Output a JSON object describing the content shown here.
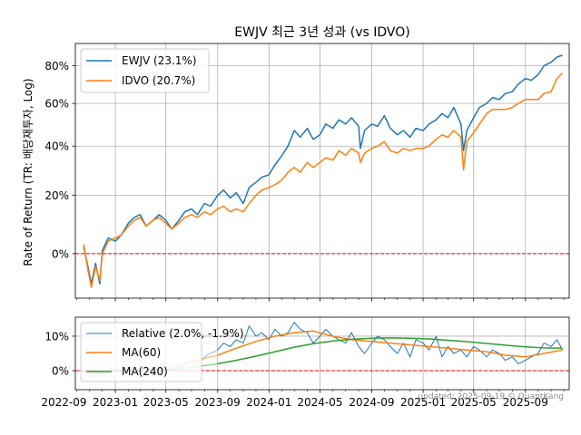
{
  "colors": {
    "ewjv": "#1f77b4",
    "idvo": "#ff7f0e",
    "ma240": "#2ca02c",
    "zero_line": "#ff0000",
    "grid": "#b0b0b0"
  },
  "chart_data": [
    {
      "type": "line",
      "title": "EWJV 최근 3년 성과 (vs IDVO)",
      "ylabel": "Rate of Return (TR: 배당재투자, Log)",
      "yscale": "log(1+r)",
      "ylim": [
        -0.13,
        0.93
      ],
      "yticks": [
        0,
        0.2,
        0.4,
        0.6,
        0.8
      ],
      "ytick_labels": [
        "0%",
        "20%",
        "40%",
        "60%",
        "80%"
      ],
      "xlim": [
        "2022-09-28",
        "2025-12-14"
      ],
      "x_tick_labels": [
        "2022-09",
        "2023-01",
        "2023-05",
        "2023-09",
        "2024-01",
        "2024-05",
        "2024-09",
        "2025-01",
        "2025-05",
        "2025-09"
      ],
      "legend_position": "upper left",
      "zero_line": 0,
      "series": [
        {
          "name": "EWJV (23.1%)",
          "dates": [
            "2022-10-18",
            "2022-10-28",
            "2022-11-05",
            "2022-11-15",
            "2022-11-25",
            "2022-12-01",
            "2022-12-15",
            "2023-01-01",
            "2023-01-15",
            "2023-02-01",
            "2023-02-15",
            "2023-03-01",
            "2023-03-15",
            "2023-04-01",
            "2023-04-15",
            "2023-05-01",
            "2023-05-15",
            "2023-06-01",
            "2023-06-15",
            "2023-07-01",
            "2023-07-15",
            "2023-08-01",
            "2023-08-15",
            "2023-09-01",
            "2023-09-15",
            "2023-10-01",
            "2023-10-15",
            "2023-11-01",
            "2023-11-15",
            "2023-12-01",
            "2023-12-15",
            "2024-01-01",
            "2024-01-15",
            "2024-02-01",
            "2024-02-15",
            "2024-03-01",
            "2024-03-15",
            "2024-04-01",
            "2024-04-15",
            "2024-05-01",
            "2024-05-15",
            "2024-06-01",
            "2024-06-15",
            "2024-07-01",
            "2024-07-15",
            "2024-08-01",
            "2024-08-05",
            "2024-08-15",
            "2024-09-01",
            "2024-09-15",
            "2024-10-01",
            "2024-10-15",
            "2024-11-01",
            "2024-11-15",
            "2024-12-01",
            "2024-12-15",
            "2025-01-01",
            "2025-01-15",
            "2025-02-01",
            "2025-02-15",
            "2025-03-01",
            "2025-03-15",
            "2025-04-01",
            "2025-04-07",
            "2025-04-15",
            "2025-05-01",
            "2025-05-15",
            "2025-06-01",
            "2025-06-15",
            "2025-07-01",
            "2025-07-15",
            "2025-08-01",
            "2025-08-15",
            "2025-09-01",
            "2025-09-15",
            "2025-10-01",
            "2025-10-15",
            "2025-11-01",
            "2025-11-15",
            "2025-11-28"
          ],
          "values": [
            0.02,
            -0.04,
            -0.09,
            -0.03,
            -0.09,
            0.01,
            0.05,
            0.04,
            0.06,
            0.1,
            0.12,
            0.13,
            0.09,
            0.11,
            0.13,
            0.11,
            0.08,
            0.11,
            0.14,
            0.15,
            0.13,
            0.17,
            0.16,
            0.2,
            0.22,
            0.19,
            0.21,
            0.17,
            0.23,
            0.25,
            0.27,
            0.28,
            0.32,
            0.36,
            0.4,
            0.47,
            0.44,
            0.48,
            0.43,
            0.45,
            0.5,
            0.48,
            0.52,
            0.5,
            0.53,
            0.49,
            0.39,
            0.47,
            0.5,
            0.49,
            0.54,
            0.48,
            0.45,
            0.47,
            0.44,
            0.48,
            0.47,
            0.5,
            0.52,
            0.55,
            0.53,
            0.58,
            0.5,
            0.38,
            0.47,
            0.53,
            0.58,
            0.6,
            0.63,
            0.62,
            0.65,
            0.66,
            0.7,
            0.73,
            0.72,
            0.75,
            0.8,
            0.82,
            0.85,
            0.86
          ]
        },
        {
          "name": "IDVO (20.7%)",
          "dates": [
            "2022-10-18",
            "2022-10-28",
            "2022-11-05",
            "2022-11-15",
            "2022-11-25",
            "2022-12-01",
            "2022-12-15",
            "2023-01-01",
            "2023-01-15",
            "2023-02-01",
            "2023-02-15",
            "2023-03-01",
            "2023-03-15",
            "2023-04-01",
            "2023-04-15",
            "2023-05-01",
            "2023-05-15",
            "2023-06-01",
            "2023-06-15",
            "2023-07-01",
            "2023-07-15",
            "2023-08-01",
            "2023-08-15",
            "2023-09-01",
            "2023-09-15",
            "2023-10-01",
            "2023-10-15",
            "2023-11-01",
            "2023-11-15",
            "2023-12-01",
            "2023-12-15",
            "2024-01-01",
            "2024-01-15",
            "2024-02-01",
            "2024-02-15",
            "2024-03-01",
            "2024-03-15",
            "2024-04-01",
            "2024-04-15",
            "2024-05-01",
            "2024-05-15",
            "2024-06-01",
            "2024-06-15",
            "2024-07-01",
            "2024-07-15",
            "2024-08-01",
            "2024-08-05",
            "2024-08-15",
            "2024-09-01",
            "2024-09-15",
            "2024-10-01",
            "2024-10-15",
            "2024-11-01",
            "2024-11-15",
            "2024-12-01",
            "2024-12-15",
            "2025-01-01",
            "2025-01-15",
            "2025-02-01",
            "2025-02-15",
            "2025-03-01",
            "2025-03-15",
            "2025-04-01",
            "2025-04-07",
            "2025-04-15",
            "2025-05-01",
            "2025-05-15",
            "2025-06-01",
            "2025-06-15",
            "2025-07-01",
            "2025-07-15",
            "2025-08-01",
            "2025-08-15",
            "2025-09-01",
            "2025-09-15",
            "2025-10-01",
            "2025-10-15",
            "2025-11-01",
            "2025-11-15",
            "2025-11-28"
          ],
          "values": [
            0.03,
            -0.05,
            -0.1,
            -0.04,
            -0.08,
            0.0,
            0.04,
            0.05,
            0.06,
            0.09,
            0.11,
            0.12,
            0.09,
            0.11,
            0.12,
            0.1,
            0.08,
            0.1,
            0.12,
            0.13,
            0.12,
            0.14,
            0.13,
            0.15,
            0.16,
            0.14,
            0.15,
            0.14,
            0.17,
            0.2,
            0.22,
            0.23,
            0.24,
            0.26,
            0.29,
            0.31,
            0.29,
            0.33,
            0.31,
            0.33,
            0.35,
            0.34,
            0.38,
            0.36,
            0.39,
            0.37,
            0.33,
            0.37,
            0.39,
            0.4,
            0.42,
            0.38,
            0.37,
            0.39,
            0.38,
            0.39,
            0.39,
            0.4,
            0.43,
            0.45,
            0.44,
            0.47,
            0.44,
            0.3,
            0.42,
            0.46,
            0.5,
            0.55,
            0.57,
            0.57,
            0.57,
            0.58,
            0.6,
            0.62,
            0.62,
            0.62,
            0.65,
            0.66,
            0.73,
            0.76
          ]
        }
      ]
    },
    {
      "type": "line",
      "ylim": [
        -0.055,
        0.155
      ],
      "yticks": [
        0,
        0.1
      ],
      "ytick_labels": [
        "0%",
        "10%"
      ],
      "xlim": [
        "2022-09-28",
        "2025-12-14"
      ],
      "x_tick_labels": [
        "2022-09",
        "2023-01",
        "2023-05",
        "2023-09",
        "2024-01",
        "2024-05",
        "2024-09",
        "2025-01",
        "2025-05",
        "2025-09"
      ],
      "legend_position": "upper left",
      "zero_line": 0,
      "series": [
        {
          "name": "Relative (2.0%, -1.9%)",
          "dates": [
            "2022-10-18",
            "2022-11-01",
            "2022-11-15",
            "2022-12-01",
            "2022-12-15",
            "2023-01-01",
            "2023-01-15",
            "2023-02-01",
            "2023-02-15",
            "2023-03-01",
            "2023-03-15",
            "2023-04-01",
            "2023-04-15",
            "2023-05-01",
            "2023-05-15",
            "2023-06-01",
            "2023-06-15",
            "2023-07-01",
            "2023-07-15",
            "2023-08-01",
            "2023-08-15",
            "2023-09-01",
            "2023-09-15",
            "2023-10-01",
            "2023-10-15",
            "2023-11-01",
            "2023-11-15",
            "2023-12-01",
            "2023-12-15",
            "2024-01-01",
            "2024-01-15",
            "2024-02-01",
            "2024-02-15",
            "2024-03-01",
            "2024-03-15",
            "2024-04-01",
            "2024-04-15",
            "2024-05-01",
            "2024-05-15",
            "2024-06-01",
            "2024-06-15",
            "2024-07-01",
            "2024-07-15",
            "2024-08-01",
            "2024-08-15",
            "2024-09-01",
            "2024-09-15",
            "2024-10-01",
            "2024-10-15",
            "2024-11-01",
            "2024-11-15",
            "2024-12-01",
            "2024-12-15",
            "2025-01-01",
            "2025-01-15",
            "2025-02-01",
            "2025-02-15",
            "2025-03-01",
            "2025-03-15",
            "2025-04-01",
            "2025-04-15",
            "2025-05-01",
            "2025-05-15",
            "2025-06-01",
            "2025-06-15",
            "2025-07-01",
            "2025-07-15",
            "2025-08-01",
            "2025-08-15",
            "2025-09-01",
            "2025-09-15",
            "2025-10-01",
            "2025-10-15",
            "2025-11-01",
            "2025-11-15",
            "2025-11-28"
          ],
          "values": [
            0.0,
            -0.02,
            0.01,
            -0.02,
            0.0,
            0.01,
            -0.01,
            0.0,
            0.01,
            -0.02,
            0.0,
            0.01,
            -0.01,
            0.02,
            0.0,
            0.01,
            0.02,
            0.03,
            0.02,
            0.04,
            0.05,
            0.06,
            0.08,
            0.07,
            0.09,
            0.08,
            0.13,
            0.1,
            0.11,
            0.09,
            0.12,
            0.1,
            0.11,
            0.14,
            0.12,
            0.11,
            0.08,
            0.1,
            0.12,
            0.1,
            0.09,
            0.08,
            0.11,
            0.07,
            0.05,
            0.08,
            0.1,
            0.09,
            0.07,
            0.05,
            0.08,
            0.04,
            0.09,
            0.08,
            0.06,
            0.1,
            0.04,
            0.07,
            0.05,
            0.06,
            0.04,
            0.07,
            0.06,
            0.04,
            0.06,
            0.05,
            0.03,
            0.04,
            0.02,
            0.03,
            0.04,
            0.05,
            0.08,
            0.07,
            0.09,
            0.06
          ]
        },
        {
          "name": "MA(60)",
          "dates": [
            "2023-01-15",
            "2023-03-01",
            "2023-04-15",
            "2023-06-01",
            "2023-07-15",
            "2023-09-01",
            "2023-10-15",
            "2023-12-01",
            "2024-01-15",
            "2024-03-01",
            "2024-04-15",
            "2024-06-01",
            "2024-07-15",
            "2024-09-01",
            "2024-10-15",
            "2024-12-01",
            "2025-01-15",
            "2025-03-01",
            "2025-04-15",
            "2025-06-01",
            "2025-07-15",
            "2025-09-01",
            "2025-10-15",
            "2025-11-28"
          ],
          "values": [
            0.0,
            0.0,
            0.005,
            0.015,
            0.03,
            0.045,
            0.065,
            0.085,
            0.1,
            0.11,
            0.115,
            0.1,
            0.09,
            0.085,
            0.08,
            0.075,
            0.07,
            0.065,
            0.06,
            0.055,
            0.045,
            0.04,
            0.05,
            0.06
          ]
        },
        {
          "name": "MA(240)",
          "dates": [
            "2022-10-18",
            "2022-12-01",
            "2023-01-15",
            "2023-03-01",
            "2023-04-15",
            "2023-06-01",
            "2023-07-15",
            "2023-09-01",
            "2023-10-15",
            "2023-12-01",
            "2024-01-15",
            "2024-03-01",
            "2024-04-15",
            "2024-06-01",
            "2024-07-15",
            "2024-09-01",
            "2024-10-15",
            "2024-12-01",
            "2025-01-15",
            "2025-03-01",
            "2025-04-15",
            "2025-06-01",
            "2025-07-15",
            "2025-09-01",
            "2025-10-15",
            "2025-11-28"
          ],
          "values": [
            0.0,
            0.0,
            0.0,
            0.001,
            0.003,
            0.006,
            0.012,
            0.02,
            0.03,
            0.042,
            0.055,
            0.068,
            0.078,
            0.086,
            0.091,
            0.094,
            0.095,
            0.094,
            0.092,
            0.088,
            0.084,
            0.079,
            0.074,
            0.069,
            0.066,
            0.065
          ]
        }
      ]
    }
  ],
  "footer": "updated: 2025-09-19 © QuantKang"
}
